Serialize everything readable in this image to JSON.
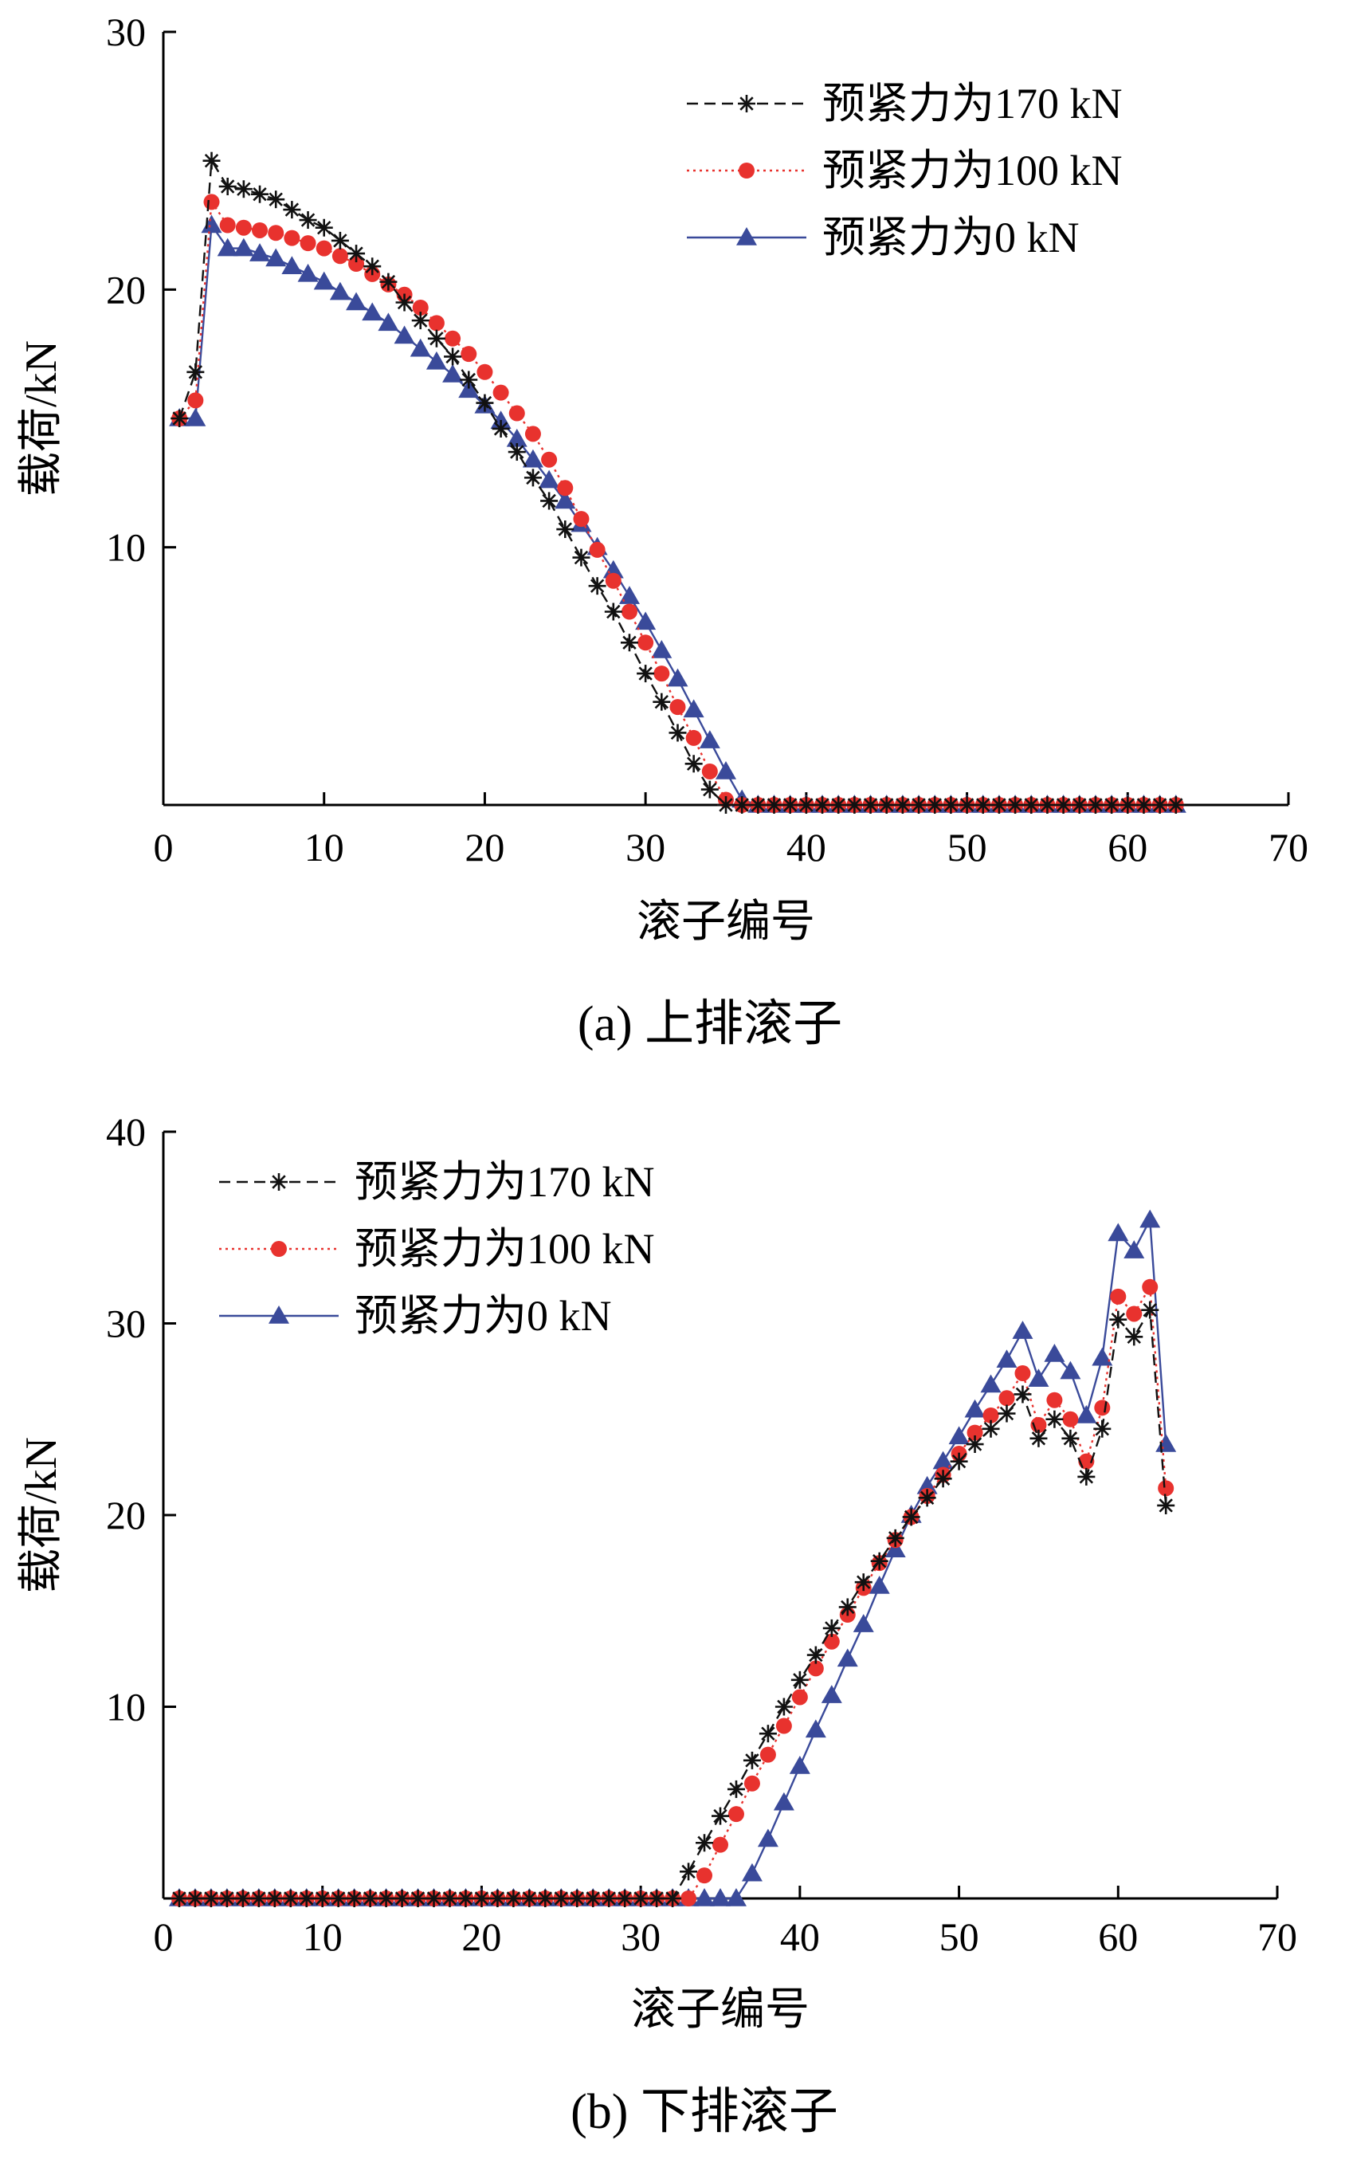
{
  "colors": {
    "s170": "#111111",
    "s100": "#e8322e",
    "s0": "#3a4a9a",
    "axis": "#000000"
  },
  "chart_data": [
    {
      "type": "line",
      "caption": "(a)  上排滚子",
      "xlabel": "滚子编号",
      "ylabel": "载荷/kN",
      "xlim": [
        0,
        70
      ],
      "ylim": [
        0,
        30
      ],
      "xticks": [
        0,
        10,
        20,
        30,
        40,
        50,
        60,
        70
      ],
      "yticks": [
        10,
        20,
        30
      ],
      "ytick_labels": [
        "10",
        "20",
        "30"
      ],
      "xtick_labels": [
        "0",
        "10",
        "20",
        "30",
        "40",
        "50",
        "60",
        "70"
      ],
      "legend_position": "top-right",
      "series": [
        {
          "name": "预紧力为170 kN",
          "marker": "asterisk",
          "line": "dashed",
          "color": "#111111",
          "x": [
            1,
            2,
            3,
            4,
            5,
            6,
            7,
            8,
            9,
            10,
            11,
            12,
            13,
            14,
            15,
            16,
            17,
            18,
            19,
            20,
            21,
            22,
            23,
            24,
            25,
            26,
            27,
            28,
            29,
            30,
            31,
            32,
            33,
            34,
            35,
            36,
            37,
            38,
            39,
            40,
            41,
            42,
            43,
            44,
            45,
            46,
            47,
            48,
            49,
            50,
            51,
            52,
            53,
            54,
            55,
            56,
            57,
            58,
            59,
            60,
            61,
            62,
            63
          ],
          "y": [
            15.0,
            16.8,
            25.0,
            24.0,
            23.9,
            23.7,
            23.5,
            23.1,
            22.7,
            22.4,
            21.9,
            21.4,
            20.9,
            20.3,
            19.5,
            18.8,
            18.1,
            17.4,
            16.5,
            15.6,
            14.6,
            13.7,
            12.7,
            11.8,
            10.7,
            9.6,
            8.5,
            7.5,
            6.3,
            5.1,
            4.0,
            2.8,
            1.6,
            0.6,
            0,
            0,
            0,
            0,
            0,
            0,
            0,
            0,
            0,
            0,
            0,
            0,
            0,
            0,
            0,
            0,
            0,
            0,
            0,
            0,
            0,
            0,
            0,
            0,
            0,
            0,
            0,
            0,
            0
          ]
        },
        {
          "name": "预紧力为100 kN",
          "marker": "circle",
          "line": "dotted",
          "color": "#e8322e",
          "x": [
            1,
            2,
            3,
            4,
            5,
            6,
            7,
            8,
            9,
            10,
            11,
            12,
            13,
            14,
            15,
            16,
            17,
            18,
            19,
            20,
            21,
            22,
            23,
            24,
            25,
            26,
            27,
            28,
            29,
            30,
            31,
            32,
            33,
            34,
            35,
            36,
            37,
            38,
            39,
            40,
            41,
            42,
            43,
            44,
            45,
            46,
            47,
            48,
            49,
            50,
            51,
            52,
            53,
            54,
            55,
            56,
            57,
            58,
            59,
            60,
            61,
            62,
            63
          ],
          "y": [
            15.0,
            15.7,
            23.4,
            22.5,
            22.4,
            22.3,
            22.2,
            22.0,
            21.8,
            21.6,
            21.3,
            21.0,
            20.6,
            20.2,
            19.8,
            19.3,
            18.7,
            18.1,
            17.5,
            16.8,
            16.0,
            15.2,
            14.4,
            13.4,
            12.3,
            11.1,
            9.9,
            8.7,
            7.5,
            6.3,
            5.1,
            3.8,
            2.6,
            1.3,
            0.2,
            0,
            0,
            0,
            0,
            0,
            0,
            0,
            0,
            0,
            0,
            0,
            0,
            0,
            0,
            0,
            0,
            0,
            0,
            0,
            0,
            0,
            0,
            0,
            0,
            0,
            0,
            0,
            0
          ]
        },
        {
          "name": "预紧力为0 kN",
          "marker": "triangle",
          "line": "solid",
          "color": "#3a4a9a",
          "x": [
            1,
            2,
            3,
            4,
            5,
            6,
            7,
            8,
            9,
            10,
            11,
            12,
            13,
            14,
            15,
            16,
            17,
            18,
            19,
            20,
            21,
            22,
            23,
            24,
            25,
            26,
            27,
            28,
            29,
            30,
            31,
            32,
            33,
            34,
            35,
            36,
            37,
            38,
            39,
            40,
            41,
            42,
            43,
            44,
            45,
            46,
            47,
            48,
            49,
            50,
            51,
            52,
            53,
            54,
            55,
            56,
            57,
            58,
            59,
            60,
            61,
            62,
            63
          ],
          "y": [
            15.0,
            15.0,
            22.5,
            21.6,
            21.6,
            21.4,
            21.2,
            20.9,
            20.6,
            20.3,
            19.9,
            19.5,
            19.1,
            18.7,
            18.2,
            17.7,
            17.2,
            16.7,
            16.1,
            15.5,
            14.9,
            14.2,
            13.4,
            12.6,
            11.8,
            10.9,
            10.0,
            9.1,
            8.1,
            7.1,
            6.0,
            4.9,
            3.7,
            2.5,
            1.3,
            0.2,
            0,
            0,
            0,
            0,
            0,
            0,
            0,
            0,
            0,
            0,
            0,
            0,
            0,
            0,
            0,
            0,
            0,
            0,
            0,
            0,
            0,
            0,
            0,
            0,
            0,
            0,
            0
          ]
        }
      ]
    },
    {
      "type": "line",
      "caption": "(b)  下排滚子",
      "xlabel": "滚子编号",
      "ylabel": "载荷/kN",
      "xlim": [
        0,
        70
      ],
      "ylim": [
        0,
        40
      ],
      "xticks": [
        0,
        10,
        20,
        30,
        40,
        50,
        60,
        70
      ],
      "yticks": [
        10,
        20,
        30,
        40
      ],
      "ytick_labels": [
        "10",
        "20",
        "30",
        "40"
      ],
      "xtick_labels": [
        "0",
        "10",
        "20",
        "30",
        "40",
        "50",
        "60",
        "70"
      ],
      "legend_position": "top-left",
      "series": [
        {
          "name": "预紧力为170 kN",
          "marker": "asterisk",
          "line": "dashed",
          "color": "#111111",
          "x": [
            1,
            2,
            3,
            4,
            5,
            6,
            7,
            8,
            9,
            10,
            11,
            12,
            13,
            14,
            15,
            16,
            17,
            18,
            19,
            20,
            21,
            22,
            23,
            24,
            25,
            26,
            27,
            28,
            29,
            30,
            31,
            32,
            33,
            34,
            35,
            36,
            37,
            38,
            39,
            40,
            41,
            42,
            43,
            44,
            45,
            46,
            47,
            48,
            49,
            50,
            51,
            52,
            53,
            54,
            55,
            56,
            57,
            58,
            59,
            60,
            61,
            62,
            63
          ],
          "y": [
            0,
            0,
            0,
            0,
            0,
            0,
            0,
            0,
            0,
            0,
            0,
            0,
            0,
            0,
            0,
            0,
            0,
            0,
            0,
            0,
            0,
            0,
            0,
            0,
            0,
            0,
            0,
            0,
            0,
            0,
            0,
            0,
            1.4,
            2.9,
            4.3,
            5.7,
            7.2,
            8.6,
            10.0,
            11.4,
            12.7,
            14.1,
            15.2,
            16.5,
            17.6,
            18.8,
            19.9,
            20.9,
            21.9,
            22.8,
            23.7,
            24.5,
            25.3,
            26.3,
            24.0,
            25.0,
            24.0,
            22.0,
            24.5,
            30.2,
            29.3,
            30.7,
            20.5
          ]
        },
        {
          "name": "预紧力为100 kN",
          "marker": "circle",
          "line": "dotted",
          "color": "#e8322e",
          "x": [
            1,
            2,
            3,
            4,
            5,
            6,
            7,
            8,
            9,
            10,
            11,
            12,
            13,
            14,
            15,
            16,
            17,
            18,
            19,
            20,
            21,
            22,
            23,
            24,
            25,
            26,
            27,
            28,
            29,
            30,
            31,
            32,
            33,
            34,
            35,
            36,
            37,
            38,
            39,
            40,
            41,
            42,
            43,
            44,
            45,
            46,
            47,
            48,
            49,
            50,
            51,
            52,
            53,
            54,
            55,
            56,
            57,
            58,
            59,
            60,
            61,
            62,
            63
          ],
          "y": [
            0,
            0,
            0,
            0,
            0,
            0,
            0,
            0,
            0,
            0,
            0,
            0,
            0,
            0,
            0,
            0,
            0,
            0,
            0,
            0,
            0,
            0,
            0,
            0,
            0,
            0,
            0,
            0,
            0,
            0,
            0,
            0,
            0,
            1.2,
            2.8,
            4.4,
            6.0,
            7.5,
            9.0,
            10.5,
            12.0,
            13.4,
            14.8,
            16.2,
            17.5,
            18.7,
            19.9,
            21.0,
            22.1,
            23.2,
            24.3,
            25.2,
            26.1,
            27.4,
            24.7,
            26.0,
            25.0,
            22.8,
            25.6,
            31.4,
            30.5,
            31.9,
            21.4
          ]
        },
        {
          "name": "预紧力为0 kN",
          "marker": "triangle",
          "line": "solid",
          "color": "#3a4a9a",
          "x": [
            1,
            2,
            3,
            4,
            5,
            6,
            7,
            8,
            9,
            10,
            11,
            12,
            13,
            14,
            15,
            16,
            17,
            18,
            19,
            20,
            21,
            22,
            23,
            24,
            25,
            26,
            27,
            28,
            29,
            30,
            31,
            32,
            33,
            34,
            35,
            36,
            37,
            38,
            39,
            40,
            41,
            42,
            43,
            44,
            45,
            46,
            47,
            48,
            49,
            50,
            51,
            52,
            53,
            54,
            55,
            56,
            57,
            58,
            59,
            60,
            61,
            62,
            63
          ],
          "y": [
            0,
            0,
            0,
            0,
            0,
            0,
            0,
            0,
            0,
            0,
            0,
            0,
            0,
            0,
            0,
            0,
            0,
            0,
            0,
            0,
            0,
            0,
            0,
            0,
            0,
            0,
            0,
            0,
            0,
            0,
            0,
            0,
            0,
            0,
            0,
            0,
            1.3,
            3.1,
            5.0,
            6.9,
            8.8,
            10.6,
            12.5,
            14.3,
            16.3,
            18.2,
            20.0,
            21.5,
            22.8,
            24.1,
            25.5,
            26.8,
            28.1,
            29.6,
            27.1,
            28.4,
            27.5,
            25.2,
            28.2,
            34.7,
            33.8,
            35.4,
            23.7
          ]
        }
      ]
    }
  ]
}
